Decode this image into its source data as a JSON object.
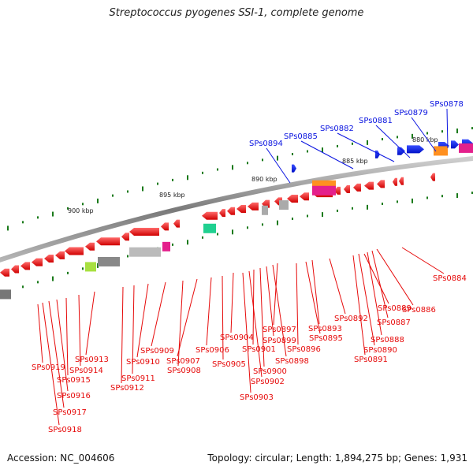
{
  "title": "Streptococcus pyogenes SSI-1, complete genome",
  "footer": {
    "accession": "Accession: NC_004606",
    "topology": "Topology: circular; Length: 1,894,275 bp; Genes: 1,931"
  },
  "colors": {
    "forward": "#0a14e0",
    "reverse": "#e60a0a",
    "tick": "#1a7a1a",
    "backbone": "#8a8a8a"
  },
  "scale_labels": [
    "880 kbp",
    "885 kbp",
    "890 kbp",
    "895 kbp",
    "900 kbp"
  ],
  "forward_genes": [
    "SPs0878",
    "SPs0879",
    "SPs0881",
    "SPs0882",
    "SPs0885",
    "SPs0894"
  ],
  "reverse_genes": [
    "SPs0884",
    "SPs0886",
    "SPs0887",
    "SPs0888",
    "SPs0889",
    "SPs0890",
    "SPs0891",
    "SPs0892",
    "SPs0893",
    "SPs0895",
    "SPs0896",
    "SPs0897",
    "SPs0898",
    "SPs0899",
    "SPs0900",
    "SPs0901",
    "SPs0902",
    "SPs0903",
    "SPs0904",
    "SPs0905",
    "SPs0906",
    "SPs0907",
    "SPs0908",
    "SPs0909",
    "SPs0910",
    "SPs0911",
    "SPs0912",
    "SPs0913",
    "SPs0914",
    "SPs0915",
    "SPs0916",
    "SPs0917",
    "SPs0918",
    "SPs0919"
  ]
}
